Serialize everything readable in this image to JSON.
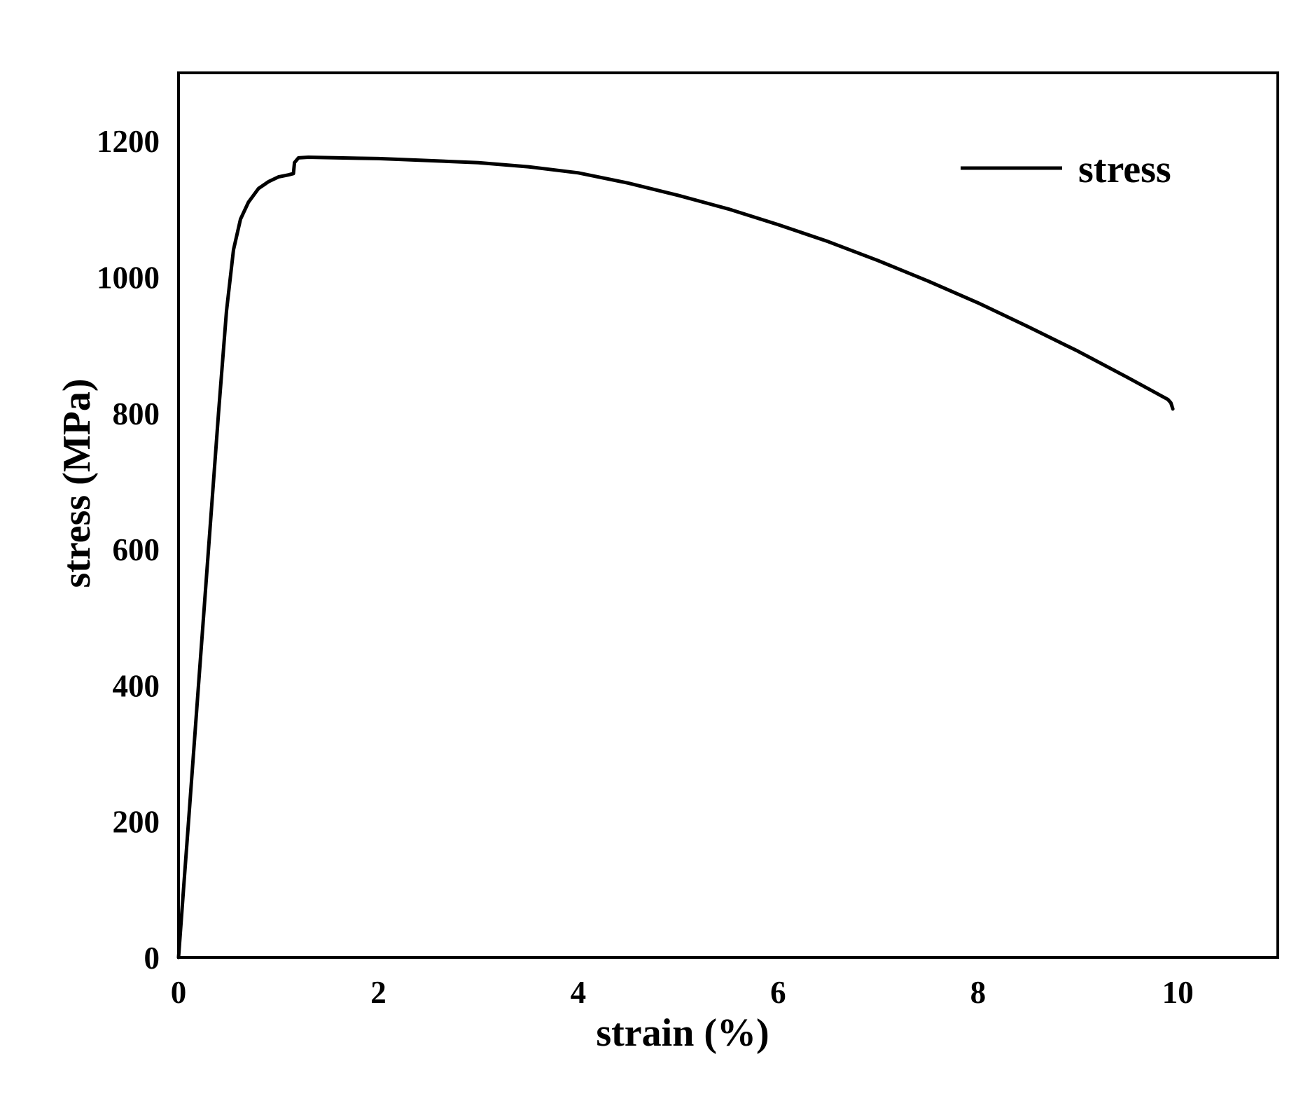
{
  "chart_data": {
    "type": "line",
    "title": "",
    "xlabel": "strain (%)",
    "ylabel": "stress (MPa)",
    "xlim": [
      0,
      11
    ],
    "ylim": [
      0,
      1300
    ],
    "xticks": [
      0,
      2,
      4,
      6,
      8,
      10
    ],
    "yticks": [
      0,
      200,
      400,
      600,
      800,
      1000,
      1200
    ],
    "grid": false,
    "legend": "top-right",
    "line_color": "#000000",
    "series": [
      {
        "name": "stress",
        "points": [
          [
            0.0,
            0
          ],
          [
            0.05,
            100
          ],
          [
            0.1,
            200
          ],
          [
            0.2,
            400
          ],
          [
            0.3,
            600
          ],
          [
            0.4,
            800
          ],
          [
            0.48,
            950
          ],
          [
            0.55,
            1040
          ],
          [
            0.62,
            1085
          ],
          [
            0.7,
            1110
          ],
          [
            0.8,
            1130
          ],
          [
            0.9,
            1140
          ],
          [
            1.0,
            1147
          ],
          [
            1.1,
            1150
          ],
          [
            1.15,
            1152
          ],
          [
            1.16,
            1168
          ],
          [
            1.2,
            1175
          ],
          [
            1.3,
            1176
          ],
          [
            1.6,
            1175
          ],
          [
            2.0,
            1174
          ],
          [
            2.5,
            1171
          ],
          [
            3.0,
            1168
          ],
          [
            3.5,
            1162
          ],
          [
            4.0,
            1153
          ],
          [
            4.5,
            1138
          ],
          [
            5.0,
            1120
          ],
          [
            5.5,
            1100
          ],
          [
            6.0,
            1077
          ],
          [
            6.5,
            1052
          ],
          [
            7.0,
            1024
          ],
          [
            7.5,
            994
          ],
          [
            8.0,
            962
          ],
          [
            8.5,
            927
          ],
          [
            9.0,
            891
          ],
          [
            9.5,
            852
          ],
          [
            9.9,
            820
          ],
          [
            9.93,
            815
          ],
          [
            9.95,
            806
          ]
        ]
      }
    ]
  }
}
